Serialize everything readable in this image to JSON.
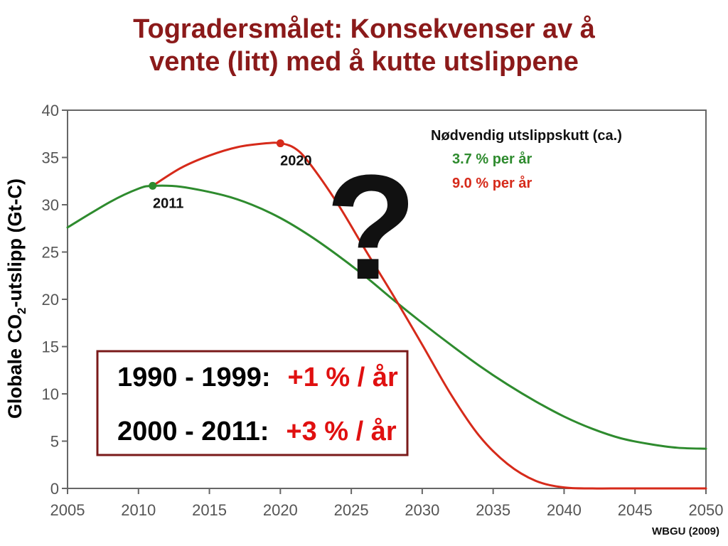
{
  "title": {
    "line1": "Togradersmålet: Konsekvenser av å",
    "line2": "vente (litt) med å kutte utslippene"
  },
  "chart_data": {
    "type": "line",
    "title": "",
    "ylabel": {
      "prefix": "Globale CO",
      "subscript": "2",
      "suffix": "-utslipp (Gt-C)"
    },
    "xlabel": "",
    "xlim": [
      2005,
      2050
    ],
    "ylim": [
      0,
      40
    ],
    "x_ticks": [
      2005,
      2010,
      2015,
      2020,
      2025,
      2030,
      2035,
      2040,
      2045,
      2050
    ],
    "y_ticks": [
      0,
      5,
      10,
      15,
      20,
      25,
      30,
      35,
      40
    ],
    "grid": false,
    "legend": {
      "placement": "top-right",
      "title": "Nødvendig utslippskutt (ca.)",
      "entries": [
        {
          "label": "3.7 % per år",
          "color": "#2e8b2e"
        },
        {
          "label": "9.0 % per år",
          "color": "#d62a1a"
        }
      ]
    },
    "series": [
      {
        "color": "#2e8b2e",
        "x": [
          2005,
          2008,
          2010,
          2011,
          2013,
          2016,
          2018,
          2020,
          2022,
          2024,
          2026,
          2028,
          2030,
          2032,
          2034,
          2036,
          2038,
          2040,
          2042,
          2044,
          2046,
          2048,
          2050
        ],
        "y": [
          27.6,
          30.3,
          31.7,
          32.0,
          31.9,
          31.0,
          30.0,
          28.6,
          26.8,
          24.7,
          22.4,
          19.9,
          17.5,
          15.2,
          13.0,
          11.0,
          9.2,
          7.6,
          6.3,
          5.3,
          4.7,
          4.3,
          4.2
        ]
      },
      {
        "color": "#d62a1a",
        "x": [
          2011,
          2013,
          2015,
          2017,
          2019,
          2020,
          2021,
          2022,
          2024,
          2026,
          2028,
          2030,
          2032,
          2034,
          2036,
          2038,
          2040,
          2042,
          2044,
          2046,
          2048,
          2050
        ],
        "y": [
          32.0,
          33.9,
          35.2,
          36.1,
          36.5,
          36.5,
          36.0,
          34.5,
          30.2,
          25.2,
          20.3,
          15.2,
          10.0,
          5.6,
          2.6,
          0.8,
          0.1,
          0.0,
          0.0,
          0.0,
          0.0,
          0.0
        ]
      }
    ],
    "points": [
      {
        "label": "2011",
        "x": 2011,
        "y": 32.0,
        "color": "#2e8b2e"
      },
      {
        "label": "2020",
        "x": 2020,
        "y": 36.5,
        "color": "#d62a1a"
      }
    ],
    "annotation_symbol": "?"
  },
  "info_box": {
    "rows": [
      {
        "period": "1990 - 1999:",
        "rate": "+1 % / år"
      },
      {
        "period": "2000 - 2011:",
        "rate": "+3 % / år"
      }
    ],
    "border_color": "#7a1a1a",
    "rate_color": "#e01010"
  },
  "source": "WBGU (2009)"
}
